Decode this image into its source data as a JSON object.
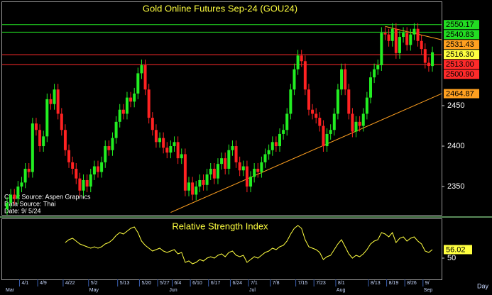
{
  "chart_data": [
    {
      "type": "candlestick",
      "title": "Gold Online Futures Sep-24 (GOU24)",
      "x_label": "Day",
      "up_color": "#22ee22",
      "down_color": "#ff2222",
      "categories": [
        null,
        null,
        null,
        null,
        "4/1",
        null,
        null,
        null,
        null,
        "4/9",
        null,
        null,
        null,
        null,
        null,
        null,
        "4/22",
        null,
        null,
        null,
        null,
        null,
        null,
        "5/2",
        null,
        null,
        null,
        null,
        null,
        null,
        null,
        "5/13",
        null,
        null,
        null,
        null,
        null,
        "5/20",
        null,
        null,
        null,
        null,
        "5/27",
        null,
        null,
        null,
        "6/4",
        null,
        null,
        null,
        null,
        "6/10",
        null,
        null,
        null,
        null,
        "6/17",
        null,
        null,
        null,
        null,
        null,
        "6/24",
        null,
        null,
        null,
        null,
        "7/1",
        null,
        null,
        null,
        null,
        null,
        "7/8",
        null,
        null,
        null,
        null,
        null,
        null,
        "7/15",
        null,
        null,
        null,
        null,
        "7/23",
        null,
        null,
        null,
        null,
        null,
        "8/1",
        null,
        null,
        null,
        null,
        null,
        null,
        null,
        null,
        "8/13",
        null,
        null,
        null,
        null,
        "8/19",
        null,
        null,
        null,
        null,
        "8/26",
        null,
        null,
        null,
        null,
        "9/",
        null,
        null
      ],
      "month_categories": [
        "Mar",
        null,
        null,
        null,
        null,
        null,
        null,
        null,
        null,
        null,
        null,
        null,
        null,
        null,
        null,
        null,
        null,
        null,
        null,
        null,
        null,
        null,
        null,
        "May",
        null,
        null,
        null,
        null,
        null,
        null,
        null,
        null,
        null,
        null,
        null,
        null,
        null,
        null,
        null,
        null,
        null,
        null,
        null,
        null,
        null,
        "Jun",
        null,
        null,
        null,
        null,
        null,
        null,
        null,
        null,
        null,
        null,
        null,
        null,
        null,
        null,
        null,
        null,
        null,
        null,
        null,
        null,
        null,
        "Jul",
        null,
        null,
        null,
        null,
        null,
        null,
        null,
        null,
        null,
        null,
        null,
        null,
        null,
        null,
        null,
        null,
        null,
        null,
        null,
        null,
        null,
        null,
        null,
        "Aug",
        null,
        null,
        null,
        null,
        null,
        null,
        null,
        null,
        null,
        null,
        null,
        null,
        null,
        null,
        null,
        null,
        null,
        null,
        null,
        null,
        null,
        null,
        null,
        "Sep",
        null,
        null
      ],
      "open": [
        2322,
        2330,
        2340,
        2335,
        2350,
        2355,
        2372,
        2368,
        2428,
        2420,
        2400,
        2412,
        2458,
        2452,
        2470,
        2440,
        2420,
        2395,
        2380,
        2372,
        2360,
        2345,
        2358,
        2350,
        2365,
        2375,
        2368,
        2380,
        2400,
        2395,
        2410,
        2430,
        2445,
        2440,
        2460,
        2455,
        2465,
        2490,
        2500,
        2470,
        2435,
        2420,
        2405,
        2410,
        2398,
        2392,
        2400,
        2405,
        2385,
        2390,
        2345,
        2355,
        2340,
        2350,
        2358,
        2352,
        2365,
        2372,
        2360,
        2378,
        2385,
        2372,
        2395,
        2400,
        2380,
        2370,
        2375,
        2350,
        2362,
        2372,
        2368,
        2380,
        2390,
        2395,
        2405,
        2400,
        2415,
        2420,
        2440,
        2470,
        2495,
        2512,
        2505,
        2470,
        2445,
        2440,
        2435,
        2425,
        2400,
        2415,
        2420,
        2440,
        2470,
        2495,
        2470,
        2440,
        2418,
        2430,
        2425,
        2440,
        2460,
        2485,
        2495,
        2500,
        2540,
        2538,
        2530,
        2545,
        2515,
        2535,
        2540,
        2525,
        2538,
        2545,
        2530,
        2520,
        2503,
        2499
      ],
      "high": [
        2337,
        2347,
        2347,
        2357,
        2362,
        2379,
        2379,
        2435,
        2435,
        2427,
        2419,
        2465,
        2465,
        2477,
        2477,
        2447,
        2427,
        2402,
        2387,
        2379,
        2367,
        2365,
        2365,
        2372,
        2382,
        2382,
        2387,
        2407,
        2407,
        2417,
        2437,
        2452,
        2452,
        2467,
        2467,
        2472,
        2497,
        2507,
        2507,
        2477,
        2442,
        2427,
        2417,
        2417,
        2405,
        2407,
        2412,
        2412,
        2397,
        2397,
        2362,
        2362,
        2357,
        2365,
        2365,
        2372,
        2379,
        2379,
        2385,
        2392,
        2392,
        2402,
        2407,
        2407,
        2387,
        2382,
        2382,
        2369,
        2379,
        2379,
        2387,
        2397,
        2402,
        2412,
        2412,
        2422,
        2427,
        2447,
        2477,
        2502,
        2519,
        2519,
        2512,
        2477,
        2452,
        2447,
        2442,
        2432,
        2422,
        2427,
        2447,
        2477,
        2502,
        2502,
        2477,
        2447,
        2437,
        2437,
        2447,
        2467,
        2492,
        2502,
        2507,
        2547,
        2547,
        2545,
        2552,
        2552,
        2542,
        2547,
        2547,
        2545,
        2552,
        2552,
        2537,
        2527,
        2510,
        2523
      ],
      "low": [
        2315,
        2323,
        2328,
        2328,
        2343,
        2348,
        2361,
        2361,
        2413,
        2393,
        2393,
        2405,
        2445,
        2445,
        2433,
        2413,
        2388,
        2373,
        2365,
        2353,
        2338,
        2338,
        2343,
        2343,
        2358,
        2361,
        2361,
        2373,
        2388,
        2388,
        2403,
        2423,
        2433,
        2433,
        2448,
        2448,
        2458,
        2483,
        2463,
        2428,
        2413,
        2398,
        2398,
        2391,
        2385,
        2385,
        2393,
        2378,
        2378,
        2338,
        2338,
        2333,
        2333,
        2343,
        2345,
        2345,
        2358,
        2353,
        2353,
        2371,
        2365,
        2365,
        2388,
        2373,
        2363,
        2363,
        2343,
        2343,
        2355,
        2361,
        2361,
        2373,
        2383,
        2388,
        2393,
        2393,
        2408,
        2413,
        2433,
        2463,
        2488,
        2498,
        2463,
        2438,
        2433,
        2428,
        2418,
        2393,
        2393,
        2408,
        2413,
        2433,
        2463,
        2463,
        2433,
        2411,
        2411,
        2418,
        2418,
        2433,
        2453,
        2478,
        2488,
        2493,
        2531,
        2523,
        2523,
        2508,
        2508,
        2528,
        2518,
        2518,
        2531,
        2523,
        2513,
        2496,
        2492,
        2492
      ],
      "close": [
        2330,
        2340,
        2335,
        2350,
        2355,
        2372,
        2368,
        2428,
        2420,
        2400,
        2412,
        2458,
        2452,
        2470,
        2440,
        2420,
        2395,
        2380,
        2372,
        2360,
        2345,
        2358,
        2350,
        2365,
        2375,
        2368,
        2380,
        2400,
        2395,
        2410,
        2430,
        2445,
        2440,
        2460,
        2455,
        2465,
        2490,
        2500,
        2470,
        2435,
        2420,
        2405,
        2410,
        2398,
        2392,
        2400,
        2405,
        2385,
        2390,
        2345,
        2355,
        2340,
        2350,
        2358,
        2352,
        2365,
        2372,
        2360,
        2378,
        2385,
        2372,
        2395,
        2400,
        2380,
        2370,
        2375,
        2350,
        2362,
        2372,
        2368,
        2380,
        2390,
        2395,
        2405,
        2400,
        2415,
        2420,
        2440,
        2470,
        2495,
        2512,
        2505,
        2470,
        2445,
        2440,
        2435,
        2425,
        2400,
        2415,
        2420,
        2440,
        2470,
        2495,
        2470,
        2440,
        2418,
        2430,
        2425,
        2440,
        2460,
        2485,
        2495,
        2500,
        2540,
        2538,
        2530,
        2545,
        2515,
        2535,
        2540,
        2525,
        2538,
        2545,
        2530,
        2520,
        2503,
        2499,
        2516
      ],
      "ylim": [
        2315,
        2578
      ],
      "yticks": [
        2350,
        2400,
        2450
      ],
      "levels": [
        {
          "value": 2550.17,
          "color": "#22dd22",
          "line": "full"
        },
        {
          "value": 2540.83,
          "color": "#22dd22",
          "line": "full"
        },
        {
          "value": 2531.43,
          "color": "#ffa020",
          "line": "trend",
          "trend_start": {
            "index": 104,
            "value": 2548
          }
        },
        {
          "value": 2516.3,
          "label": "2516.30",
          "color": "#ffff40",
          "line": "none"
        },
        {
          "value": 2513,
          "label": "2513.00",
          "color": "#ff2a2a",
          "line": "full"
        },
        {
          "value": 2500.9,
          "label": "2500.90",
          "color": "#ff2a2a",
          "line": "full"
        },
        {
          "value": 2464.87,
          "color": "#ffa020",
          "line": "trend",
          "trend_start": {
            "index": 45,
            "value": 2318
          }
        }
      ],
      "annotations": [
        "Chart Source: Aspen Graphics",
        "Data Source: Thai",
        "Date: 9/ 5/24"
      ]
    },
    {
      "type": "line",
      "title": "Relative Strength Index",
      "color": "#ffff40",
      "values": [
        null,
        null,
        null,
        null,
        null,
        null,
        null,
        null,
        null,
        null,
        null,
        null,
        null,
        null,
        null,
        null,
        61,
        63,
        64,
        62,
        60,
        59,
        58,
        57,
        58,
        57,
        58,
        60,
        61,
        63,
        66,
        68,
        67,
        69,
        71,
        72,
        68,
        62,
        59,
        57,
        55,
        56,
        57,
        55,
        54,
        55,
        56,
        53,
        54,
        47,
        48,
        46,
        47,
        49,
        48,
        50,
        51,
        50,
        52,
        53,
        51,
        54,
        55,
        52,
        51,
        52,
        47,
        49,
        51,
        50,
        52,
        54,
        55,
        57,
        56,
        58,
        59,
        62,
        67,
        71,
        73,
        71,
        63,
        58,
        57,
        56,
        54,
        49,
        51,
        52,
        56,
        60,
        63,
        58,
        53,
        50,
        52,
        51,
        53,
        56,
        60,
        62,
        63,
        68,
        67,
        65,
        68,
        61,
        64,
        65,
        62,
        64,
        65,
        62,
        60,
        55,
        54,
        56.02
      ],
      "ylim": [
        35,
        78
      ],
      "yticks": [
        50
      ]
    }
  ]
}
